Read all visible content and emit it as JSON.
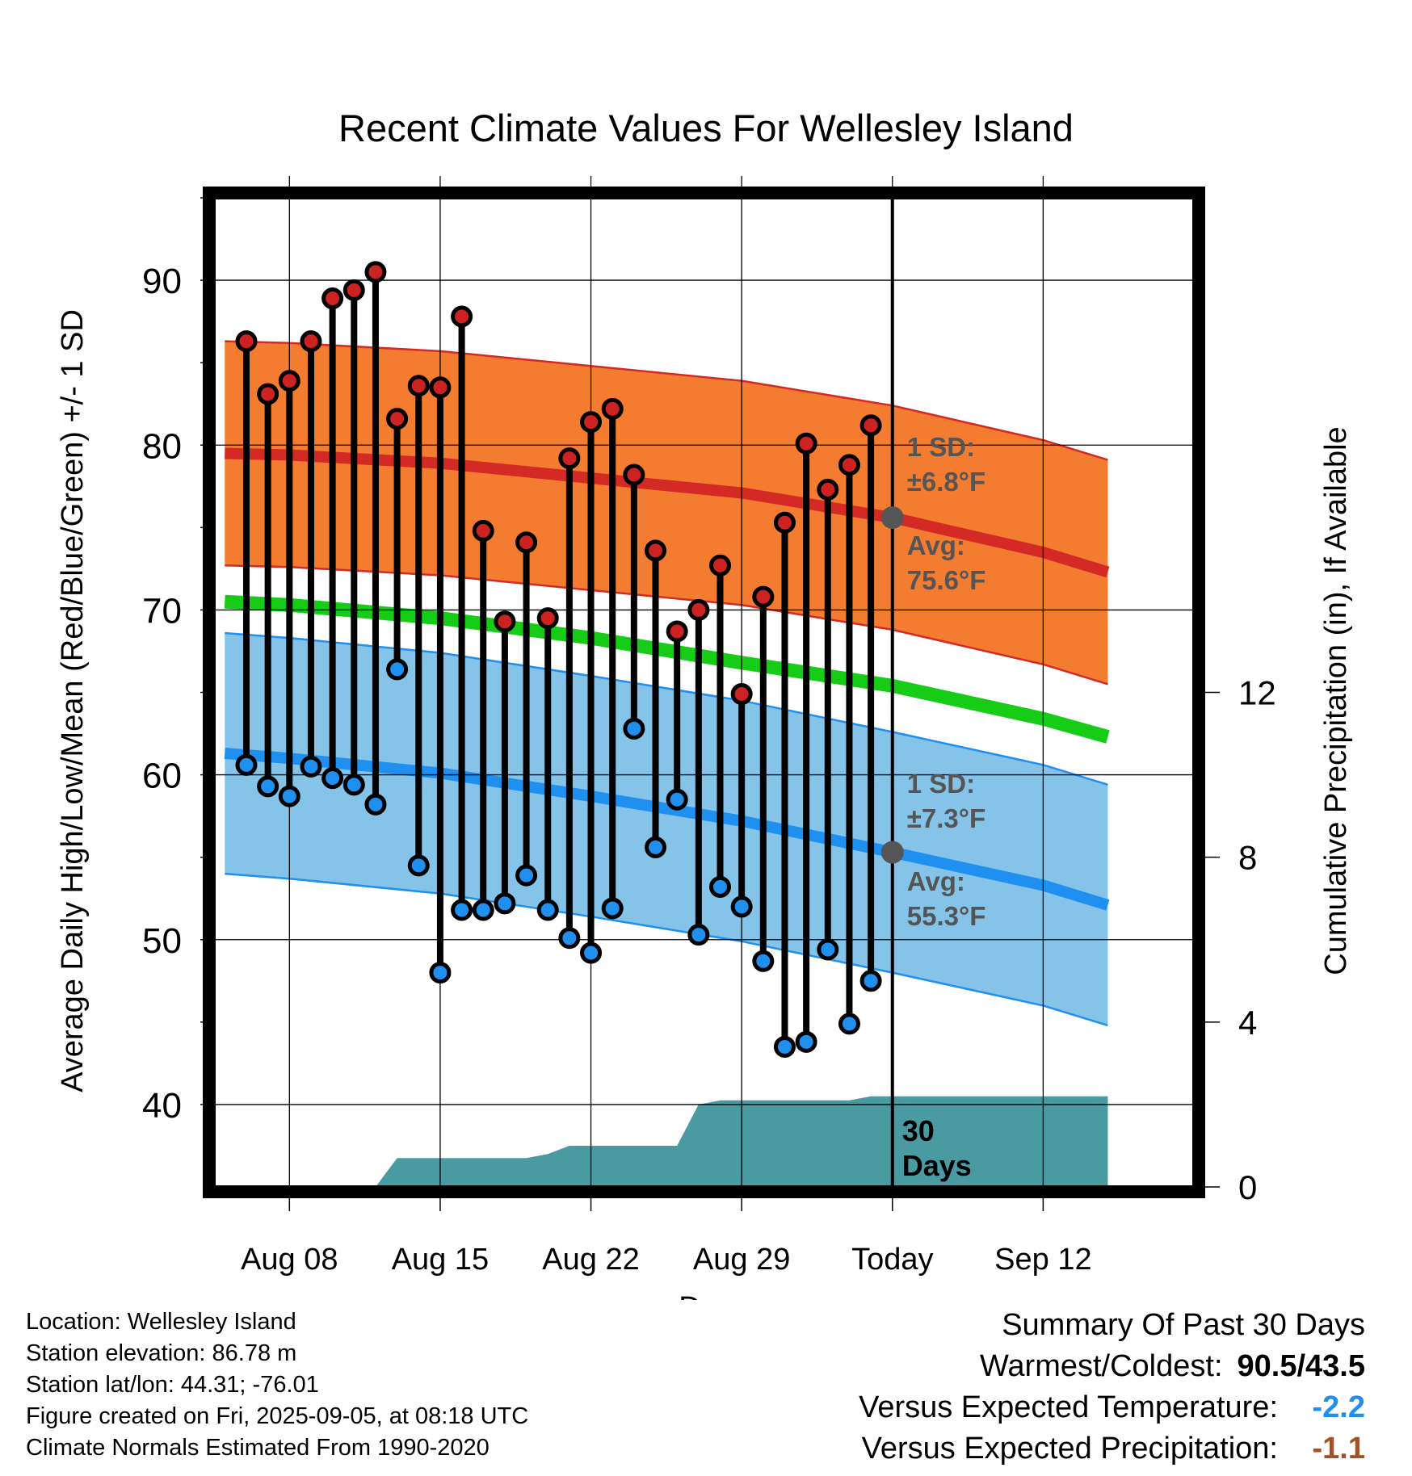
{
  "chart_data": {
    "type": "line",
    "title": "Recent Climate Values For Wellesley Island",
    "xlabel": "Day",
    "ylabel_left": "Average Daily High/Low/Mean (Red/Blue/Green) +/- 1 SD",
    "ylabel_right": "Cumulative Precipitation (in), If Available",
    "x_day_range": [
      -31.5,
      14
    ],
    "ylim": [
      35,
      95
    ],
    "y_right_lim": [
      0,
      24
    ],
    "y_ticks": [
      40,
      50,
      60,
      70,
      80,
      90
    ],
    "y_right_ticks": [
      0,
      4,
      8,
      12
    ],
    "x_ticks": [
      {
        "day": -28,
        "label": "Aug 08"
      },
      {
        "day": -21,
        "label": "Aug 15"
      },
      {
        "day": -14,
        "label": "Aug 22"
      },
      {
        "day": -7,
        "label": "Aug 29"
      },
      {
        "day": 0,
        "label": "Today"
      },
      {
        "day": 7,
        "label": "Sep 12"
      }
    ],
    "grid": true,
    "daily_days": [
      -30,
      -29,
      -28,
      -27,
      -26,
      -25,
      -24,
      -23,
      -22,
      -21,
      -20,
      -19,
      -18,
      -17,
      -16,
      -15,
      -14,
      -13,
      -12,
      -11,
      -10,
      -9,
      -8,
      -7,
      -6,
      -5,
      -4,
      -3,
      -2,
      -1
    ],
    "daily_highs": [
      86.3,
      83.1,
      83.9,
      86.3,
      88.9,
      89.4,
      90.5,
      81.6,
      83.6,
      83.5,
      87.8,
      74.8,
      69.3,
      74.1,
      69.5,
      79.2,
      81.4,
      82.2,
      78.2,
      73.6,
      68.7,
      70.0,
      72.7,
      64.9,
      70.8,
      75.3,
      80.1,
      77.3,
      78.8,
      81.2
    ],
    "daily_lows": [
      60.6,
      59.3,
      58.7,
      60.5,
      59.8,
      59.4,
      58.2,
      66.4,
      54.5,
      48.0,
      51.8,
      51.8,
      52.2,
      53.9,
      51.8,
      50.1,
      49.2,
      51.9,
      62.8,
      55.6,
      58.5,
      50.3,
      53.2,
      52.0,
      48.7,
      43.5,
      43.8,
      49.4,
      44.9,
      47.5
    ],
    "normal_days": [
      -31,
      -28,
      -21,
      -14,
      -7,
      0,
      7,
      10
    ],
    "normal_high_avg": [
      79.5,
      79.4,
      78.9,
      78.0,
      77.1,
      75.6,
      73.5,
      72.3
    ],
    "normal_high_sd": 6.8,
    "normal_mean_avg": [
      70.5,
      70.3,
      69.5,
      68.3,
      66.8,
      65.4,
      63.4,
      62.3
    ],
    "normal_low_avg": [
      61.3,
      61.0,
      60.1,
      58.7,
      57.2,
      55.3,
      53.3,
      52.1
    ],
    "normal_low_sd": 7.3,
    "precip_days": [
      -31,
      -24,
      -23,
      -17,
      -16,
      -15,
      -14,
      -10,
      -9,
      -8,
      -7,
      -2,
      -1,
      10
    ],
    "precip_cumulative": [
      0,
      0,
      0.7,
      0.7,
      0.8,
      1.0,
      1.0,
      1.0,
      2.0,
      2.1,
      2.1,
      2.1,
      2.2,
      2.2
    ],
    "annotations": {
      "high_sd_label_1": "1 SD:",
      "high_sd_label_2": "±6.8°F",
      "high_avg_label_1": "Avg:",
      "high_avg_label_2": "75.6°F",
      "low_sd_label_1": "1 SD:",
      "low_sd_label_2": "±7.3°F",
      "low_avg_label_1": "Avg:",
      "low_avg_label_2": "55.3°F",
      "precip_label_1": "30",
      "precip_label_2": "Days"
    },
    "colors": {
      "high_band": "#f47c30",
      "high_line": "#d42a26",
      "mean_line": "#16cc16",
      "low_band": "#85c3e8",
      "low_line": "#1f8ff0",
      "precip": "#4a9aa2",
      "high_dot": "#cc2222",
      "low_dot": "#1f8ff0",
      "today_dot": "#555555",
      "annotation_text": "#555555"
    }
  },
  "info": {
    "location": "Location: Wellesley Island",
    "elevation": "Station elevation: 86.78 m",
    "latlon": "Station lat/lon: 44.31; -76.01",
    "created": "Figure created on Fri, 2025-09-05, at 08:18 UTC",
    "normals": "Climate Normals Estimated From 1990-2020"
  },
  "summary": {
    "heading": "Summary Of Past 30 Days",
    "warm_cold_label": "Warmest/Coldest:",
    "warm_cold_value": "90.5/43.5",
    "temp_label": "Versus Expected Temperature:",
    "temp_value": "-2.2",
    "temp_color": "#1f8ff0",
    "precip_label": "Versus Expected Precipitation:",
    "precip_value": "-1.1",
    "precip_color": "#a0522d"
  }
}
